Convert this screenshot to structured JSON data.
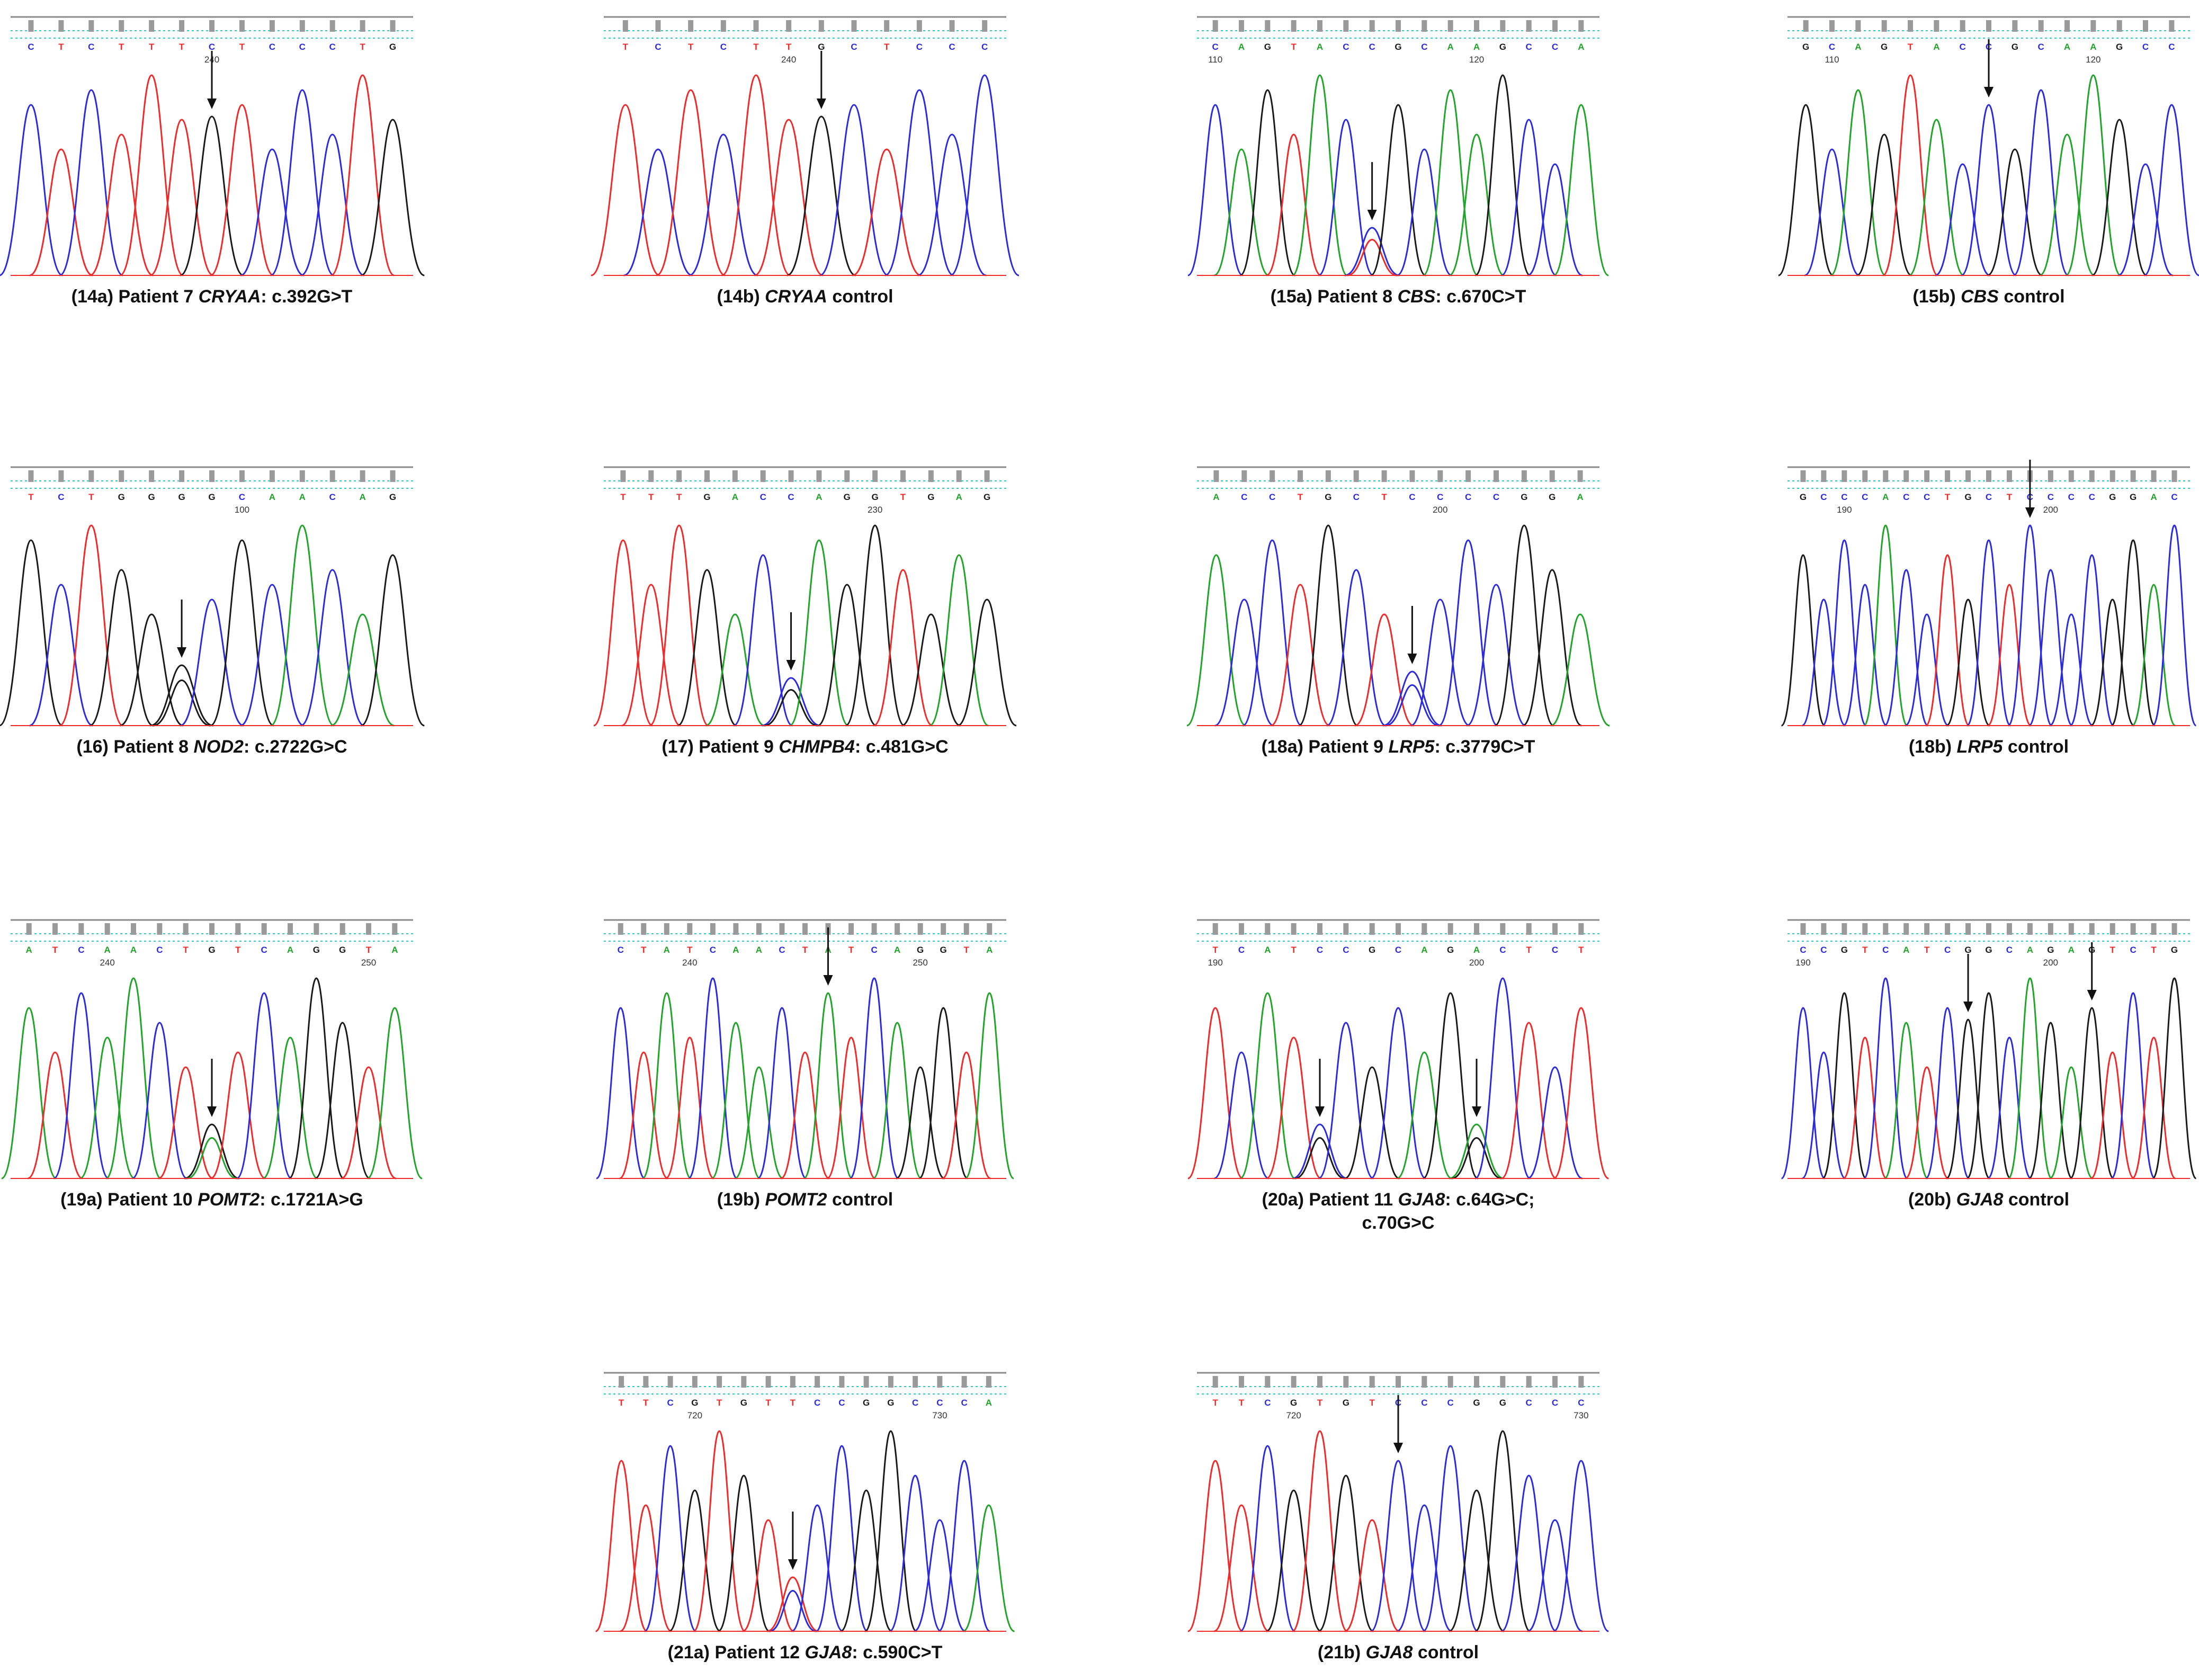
{
  "colors": {
    "A": "#22a32a",
    "C": "#2b2bdc",
    "G": "#1a1a1a",
    "T": "#ee2b2b",
    "dotted": "#2fc6c6",
    "rule": "#8a8a8a"
  },
  "panels": [
    {
      "id": "14a",
      "prefix": "(14a) Patient 7 ",
      "gene": "CRYAA",
      "suffix": ": c.392G>T",
      "line2": "",
      "bases": "CTCTTTCTCCCTG",
      "ticks": [
        {
          "label": "240",
          "index": 6
        }
      ],
      "peaks": "CTCTTTGTCCCTG",
      "arrows": [
        6
      ],
      "hetero": []
    },
    {
      "id": "14b",
      "prefix": "(14b) ",
      "gene": "CRYAA",
      "suffix": " control",
      "line2": "",
      "bases": "TCTCTTGCTCCC",
      "ticks": [
        {
          "label": "240",
          "index": 5
        }
      ],
      "peaks": "TCTCTTGCTCCC",
      "arrows": [
        6
      ],
      "hetero": []
    },
    {
      "id": "15a",
      "prefix": "(15a) Patient 8 ",
      "gene": "CBS",
      "suffix": ": c.670C>T",
      "line2": "",
      "bases": "CAGTACCGCAAGCCA",
      "ticks": [
        {
          "label": "110",
          "index": 0
        },
        {
          "label": "120",
          "index": 10
        }
      ],
      "peaks": "CAGTACCGCAAGCCA",
      "arrows": [
        6
      ],
      "hetero": [
        {
          "i": 6,
          "b": "T"
        }
      ]
    },
    {
      "id": "15b",
      "prefix": "(15b) ",
      "gene": "CBS",
      "suffix": " control",
      "line2": "",
      "bases": "GCAGTACCGCAAGCC",
      "ticks": [
        {
          "label": "110",
          "index": 1
        },
        {
          "label": "120",
          "index": 11
        }
      ],
      "peaks": "GCAGTACCGCAAGCC",
      "arrows": [
        7
      ],
      "hetero": []
    },
    {
      "id": "16",
      "prefix": "(16) Patient 8 ",
      "gene": "NOD2",
      "suffix": ": c.2722G>C",
      "line2": "",
      "bases": "TCTGGGGCAACAG",
      "ticks": [
        {
          "label": "100",
          "index": 7
        }
      ],
      "peaks": "GCTGGGCGCACAG",
      "arrows": [
        5
      ],
      "hetero": [
        {
          "i": 5,
          "b": "G"
        }
      ]
    },
    {
      "id": "17",
      "prefix": "(17) Patient 9 ",
      "gene": "CHMPB4",
      "suffix": ": c.481G>C",
      "line2": "",
      "bases": "TTTGACCAGGTGAG",
      "ticks": [
        {
          "label": "230",
          "index": 9
        }
      ],
      "peaks": "TTTGACCAGGTGAG",
      "arrows": [
        6
      ],
      "hetero": [
        {
          "i": 6,
          "b": "G"
        }
      ]
    },
    {
      "id": "18a",
      "prefix": "(18a) Patient 9 ",
      "gene": "LRP5",
      "suffix": ": c.3779C>T",
      "line2": "",
      "bases": "ACCTGCTCCCCGGA",
      "ticks": [
        {
          "label": "200",
          "index": 8
        }
      ],
      "peaks": "ACCTGCTCCCCGGA",
      "arrows": [
        7
      ],
      "hetero": [
        {
          "i": 7,
          "b": "C"
        }
      ]
    },
    {
      "id": "18b",
      "prefix": "(18b) ",
      "gene": "LRP5",
      "suffix": " control",
      "line2": "",
      "bases": "GCCCACCTGCTCCCCGGAC",
      "ticks": [
        {
          "label": "190",
          "index": 2
        },
        {
          "label": "200",
          "index": 12
        }
      ],
      "peaks": "GCCCACCTGCTCCCCGGAC",
      "arrows": [
        11
      ],
      "hetero": []
    },
    {
      "id": "19a",
      "prefix": "(19a) Patient 10 ",
      "gene": "POMT2",
      "suffix": ": c.1721A>G",
      "line2": "",
      "bases": "ATCAACTGTCAGGTA",
      "ticks": [
        {
          "label": "240",
          "index": 3
        },
        {
          "label": "250",
          "index": 13
        }
      ],
      "peaks": "ATCAACTGTCAGGTA",
      "arrows": [
        7
      ],
      "hetero": [
        {
          "i": 7,
          "b": "A"
        }
      ]
    },
    {
      "id": "19b",
      "prefix": "(19b) ",
      "gene": "POMT2",
      "suffix": " control",
      "line2": "",
      "bases": "CTATCAACTATCAGGTA",
      "ticks": [
        {
          "label": "240",
          "index": 3
        },
        {
          "label": "250",
          "index": 13
        }
      ],
      "peaks": "CTATCAACTATCAGGTA",
      "arrows": [
        9
      ],
      "hetero": []
    },
    {
      "id": "20a",
      "prefix": "(20a) Patient 11 ",
      "gene": "GJA8",
      "suffix": ": c.64G>C;",
      "line2": "c.70G>C",
      "bases": "TCATCCGCAGACTCT",
      "ticks": [
        {
          "label": "190",
          "index": 0
        },
        {
          "label": "200",
          "index": 10
        }
      ],
      "peaks": "TCATCCGCAGACTCT",
      "arrows": [
        4,
        10
      ],
      "hetero": [
        {
          "i": 4,
          "b": "G"
        },
        {
          "i": 10,
          "b": "G"
        }
      ]
    },
    {
      "id": "20b",
      "prefix": "(20b) ",
      "gene": "GJA8",
      "suffix": " control",
      "line2": "",
      "bases": "CCGTCATCGGCAGAGTCTG",
      "ticks": [
        {
          "label": "190",
          "index": 0
        },
        {
          "label": "200",
          "index": 12
        }
      ],
      "peaks": "CCGTCATCGGCAGAGTCTG",
      "arrows": [
        8,
        14
      ],
      "hetero": []
    },
    {
      "id": "21a",
      "prefix": "(21a) Patient 12 ",
      "gene": "GJA8",
      "suffix": ": c.590C>T",
      "line2": "",
      "bases": "TTCGTGTTCCGGCCCA",
      "ticks": [
        {
          "label": "720",
          "index": 3
        },
        {
          "label": "730",
          "index": 13
        }
      ],
      "peaks": "TTCGTGTTCCGGCCCA",
      "arrows": [
        7
      ],
      "hetero": [
        {
          "i": 7,
          "b": "C"
        }
      ]
    },
    {
      "id": "21b",
      "prefix": "(21b) ",
      "gene": "GJA8",
      "suffix": " control",
      "line2": "",
      "bases": "TTCGTGTCCCGGCCC",
      "ticks": [
        {
          "label": "720",
          "index": 3
        },
        {
          "label": "730",
          "index": 14
        }
      ],
      "peaks": "TTCGTGTCCCGGCCC",
      "arrows": [
        7
      ],
      "hetero": []
    }
  ]
}
